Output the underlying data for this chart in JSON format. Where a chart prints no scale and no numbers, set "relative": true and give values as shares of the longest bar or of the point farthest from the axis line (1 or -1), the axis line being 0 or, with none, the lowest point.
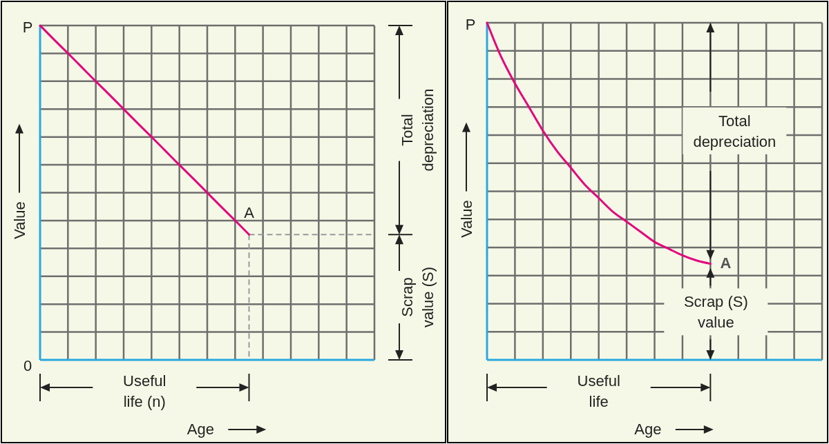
{
  "chart_data": [
    {
      "type": "line",
      "relative": true,
      "grid": true,
      "color": "#e5007d",
      "xlabel": "Age",
      "ylabel": "Value",
      "categories": [
        null,
        null,
        null,
        null,
        null,
        null,
        null,
        null,
        null,
        null,
        null,
        null,
        null,
        null,
        null,
        null,
        null,
        null,
        null,
        null,
        null,
        null,
        null,
        null,
        null
      ],
      "values": [
        1,
        0.958,
        0.917,
        0.875,
        0.833,
        0.792,
        0.75,
        0.708,
        0.667,
        0.625,
        0.583,
        0.542,
        0.5,
        0.458,
        0.417,
        0.375,
        null,
        null,
        null,
        null,
        null,
        null,
        null,
        null,
        null
      ],
      "annotations": [
        "P",
        "0",
        "A",
        "Total depreciation",
        "Scrap value (S)",
        "Useful life (n)"
      ]
    },
    {
      "type": "line",
      "relative": true,
      "grid": true,
      "color": "#e5007d",
      "xlabel": "Age",
      "ylabel": "Value",
      "categories": [
        null,
        null,
        null,
        null,
        null,
        null,
        null,
        null,
        null,
        null,
        null,
        null,
        null,
        null,
        null,
        null,
        null,
        null,
        null,
        null,
        null,
        null,
        null,
        null,
        null
      ],
      "values": [
        1,
        0.9,
        0.82,
        0.75,
        0.68,
        0.62,
        0.57,
        0.52,
        0.48,
        0.44,
        0.41,
        0.38,
        0.35,
        0.33,
        0.31,
        0.295,
        0.285,
        null,
        null,
        null,
        null,
        null,
        null,
        null,
        null
      ],
      "annotations": [
        "P",
        "A",
        "Total depreciation",
        "Scrap (S) value",
        "Useful life"
      ]
    }
  ]
}
